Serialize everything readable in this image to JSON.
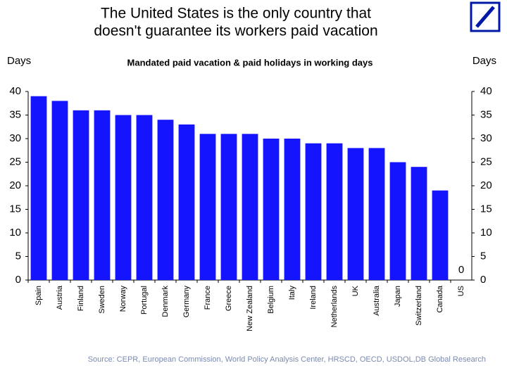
{
  "chart_data": {
    "type": "bar",
    "title": [
      "The United States is the only country that",
      "doesn't guarantee its workers paid vacation"
    ],
    "subtitle": "Mandated paid vacation & paid holidays in working days",
    "y_label": "Days",
    "y2_label": "Days",
    "source": "Source: CEPR, European Commission, World Policy Analysis Center, HRSCD, OECD, USDOL,DB Global Research",
    "categories": [
      "Spain",
      "Austria",
      "Finland",
      "Sweden",
      "Norway",
      "Portugal",
      "Denmark",
      "Germany",
      "France",
      "Greece",
      "New Zealand",
      "Belgium",
      "Italy",
      "Ireland",
      "Netherlands",
      "UK",
      "Australia",
      "Japan",
      "Switzerland",
      "Canada",
      "US"
    ],
    "values": [
      39,
      38,
      36,
      36,
      35,
      35,
      34,
      33,
      31,
      31,
      31,
      30,
      30,
      29,
      29,
      28,
      28,
      25,
      24,
      19,
      0
    ],
    "color": "#1414ff",
    "ylim": [
      0,
      40
    ],
    "yticks": [
      0,
      5,
      10,
      15,
      20,
      25,
      30,
      35,
      40
    ],
    "y2lim": [
      0,
      40
    ],
    "y2ticks": [
      0,
      5,
      10,
      15,
      20,
      25,
      30,
      35,
      40
    ]
  }
}
